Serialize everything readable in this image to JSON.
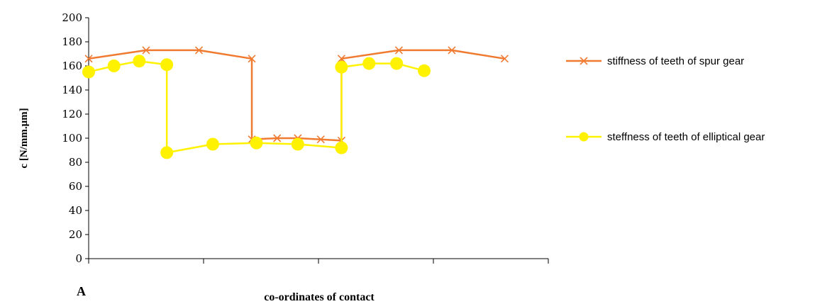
{
  "chart_data": {
    "type": "line",
    "title": "",
    "xlabel": "co-ordinates of contact",
    "ylabel": "c [N/mm.μm]",
    "corner_label": "A",
    "ylim": [
      0,
      200
    ],
    "yticks": [
      0,
      20,
      40,
      60,
      80,
      100,
      120,
      140,
      160,
      180,
      200
    ],
    "xlim": [
      0,
      1
    ],
    "xtick_count": 4,
    "grid": false,
    "legend_position": "right",
    "series": [
      {
        "name": "stiffness of teeth of spur gear",
        "color": "#F07A30",
        "marker": "x",
        "points": [
          [
            0.0,
            166
          ],
          [
            0.125,
            173
          ],
          [
            0.24,
            173
          ],
          [
            0.355,
            166
          ],
          [
            0.355,
            99
          ],
          [
            0.41,
            100
          ],
          [
            0.455,
            100
          ],
          [
            0.505,
            99
          ],
          [
            0.55,
            98
          ],
          [
            0.55,
            166
          ],
          [
            0.675,
            173
          ],
          [
            0.79,
            173
          ],
          [
            0.905,
            166
          ]
        ]
      },
      {
        "name": "steffness of teeth of elliptical gear",
        "color": "#FFF200",
        "marker": "circle",
        "points": [
          [
            0.0,
            155
          ],
          [
            0.055,
            160
          ],
          [
            0.11,
            164
          ],
          [
            0.17,
            161
          ],
          [
            0.17,
            88
          ],
          [
            0.27,
            95
          ],
          [
            0.365,
            96
          ],
          [
            0.455,
            95
          ],
          [
            0.55,
            92
          ],
          [
            0.55,
            159
          ],
          [
            0.61,
            162
          ],
          [
            0.67,
            162
          ],
          [
            0.73,
            156
          ]
        ]
      }
    ]
  }
}
